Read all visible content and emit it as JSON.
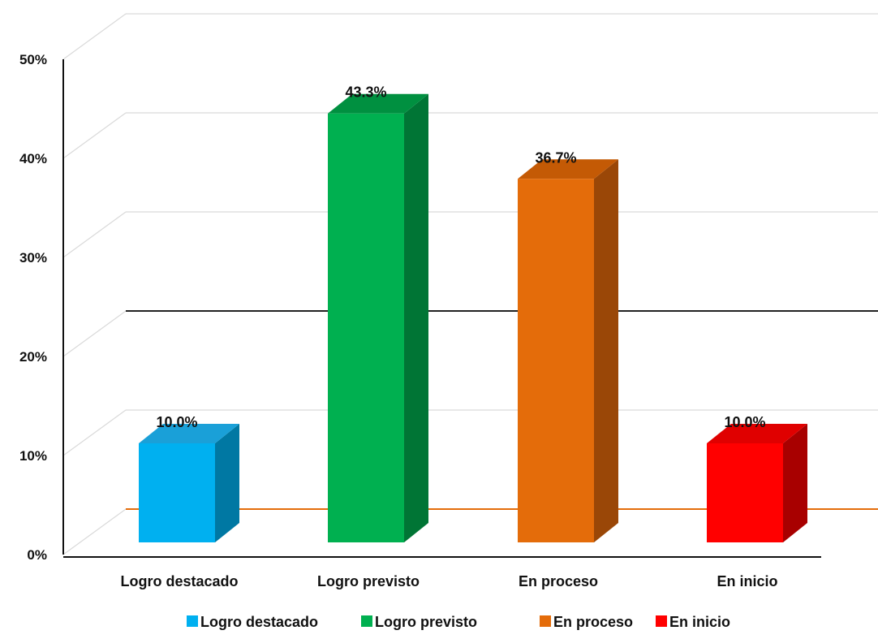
{
  "chart_data": {
    "type": "bar",
    "title": "",
    "xlabel": "",
    "ylabel": "",
    "ylim": [
      0,
      50
    ],
    "y_ticks": [
      "0%",
      "10%",
      "20%",
      "30%",
      "40%",
      "50%"
    ],
    "y_tick_values": [
      0,
      10,
      20,
      30,
      40,
      50
    ],
    "grid": true,
    "legend_position": "bottom",
    "categories": [
      "Logro destacado",
      "Logro previsto",
      "En proceso",
      "En inicio"
    ],
    "values": [
      10.0,
      43.3,
      36.7,
      10.0
    ],
    "data_labels": [
      "10.0%",
      "43.3%",
      "36.7%",
      "10.0%"
    ],
    "colors": [
      "#00b0f0",
      "#00b050",
      "#e46c0a",
      "#ff0000"
    ],
    "side_colors": [
      "#0078a3",
      "#007535",
      "#9a4707",
      "#a80000"
    ],
    "top_colors": [
      "#1aa0d8",
      "#009040",
      "#c45a05",
      "#e00000"
    ],
    "legend": [
      "Logro destacado",
      "Logro previsto",
      "En proceso",
      "En inicio"
    ]
  }
}
